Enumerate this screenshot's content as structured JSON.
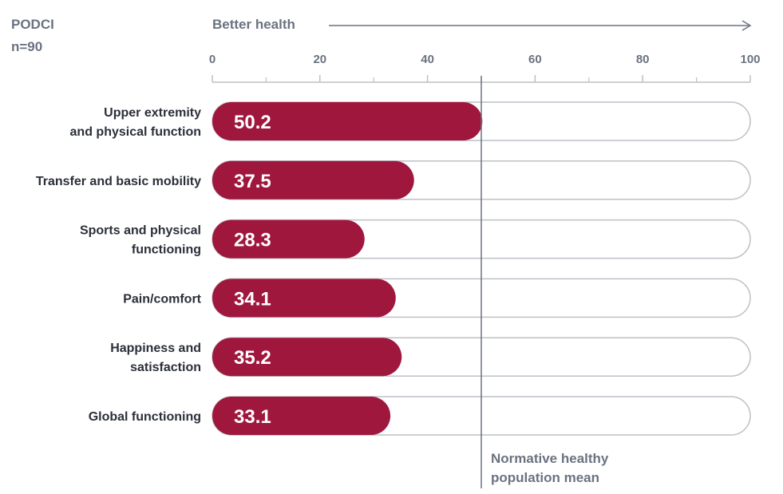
{
  "header": {
    "title": "PODCI",
    "sample": "n=90",
    "direction_label": "Better health"
  },
  "colors": {
    "bar": "#a0173e",
    "bar_outline": "#bcc0c6",
    "axis": "#6b7280",
    "text_dark": "#2b2f3a"
  },
  "chart_data": {
    "type": "bar",
    "orientation": "horizontal",
    "xlim": [
      0,
      100
    ],
    "ticks": [
      0,
      20,
      40,
      60,
      80,
      100
    ],
    "categories": [
      [
        "Upper extremity",
        "and physical function"
      ],
      [
        "Transfer and basic mobility"
      ],
      [
        "Sports and physical",
        "functioning"
      ],
      [
        "Pain/comfort"
      ],
      [
        "Happiness and",
        "satisfaction"
      ],
      [
        "Global functioning"
      ]
    ],
    "values": [
      50.2,
      37.5,
      28.3,
      34.1,
      35.2,
      33.1
    ],
    "value_labels": [
      "50.2",
      "37.5",
      "28.3",
      "34.1",
      "35.2",
      "33.1"
    ],
    "reference_line": {
      "value": 50,
      "label": [
        "Normative healthy",
        "population mean"
      ]
    }
  }
}
